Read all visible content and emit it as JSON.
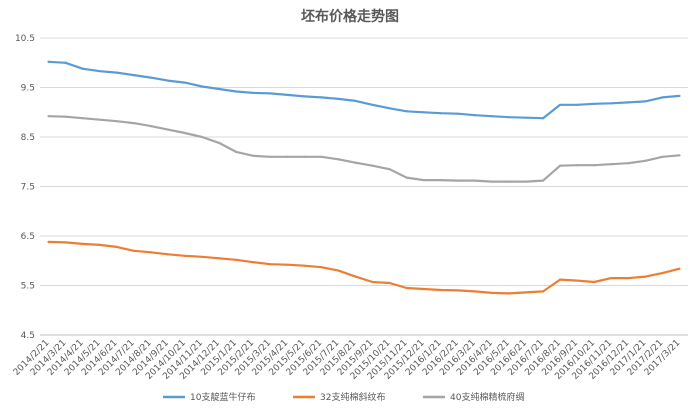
{
  "chart_data": {
    "type": "line",
    "title": "坯布价格走势图",
    "xlabel": "",
    "ylabel": "",
    "ylim": [
      4.5,
      10.5
    ],
    "y_ticks": [
      "4.5",
      "5.5",
      "6.5",
      "7.5",
      "8.5",
      "9.5",
      "10.5"
    ],
    "grid": true,
    "legend_position": "bottom",
    "x_ticks": [
      "2014/2/21",
      "2014/3/21",
      "2014/4/21",
      "2014/5/21",
      "2014/6/21",
      "2014/7/21",
      "2014/8/21",
      "2014/9/21",
      "2014/10/21",
      "2014/11/21",
      "2014/12/21",
      "2015/1/21",
      "2015/2/21",
      "2015/3/21",
      "2015/4/21",
      "2015/5/21",
      "2015/6/21",
      "2015/7/21",
      "2015/8/21",
      "2015/9/21",
      "2015/10/21",
      "2015/11/21",
      "2015/12/21",
      "2016/1/21",
      "2016/2/21",
      "2016/3/21",
      "2016/4/21",
      "2016/5/21",
      "2016/6/21",
      "2016/7/21",
      "2016/8/21",
      "2016/9/21",
      "2016/10/21",
      "2016/11/21",
      "2016/12/21",
      "2017/1/21",
      "2017/2/21",
      "2017/3/21"
    ],
    "series": [
      {
        "name": "10支靛蓝牛仔布",
        "color": "#5B9BD5",
        "values": [
          10.02,
          10.0,
          9.88,
          9.83,
          9.8,
          9.75,
          9.7,
          9.64,
          9.6,
          9.52,
          9.47,
          9.42,
          9.39,
          9.38,
          9.35,
          9.32,
          9.3,
          9.27,
          9.23,
          9.15,
          9.08,
          9.02,
          9.0,
          8.98,
          8.97,
          8.94,
          8.92,
          8.9,
          8.89,
          8.88,
          9.15,
          9.15,
          9.17,
          9.18,
          9.2,
          9.22,
          9.3,
          9.33
        ]
      },
      {
        "name": "32支纯棉斜纹布",
        "color": "#ED7D31",
        "values": [
          6.38,
          6.37,
          6.34,
          6.32,
          6.28,
          6.2,
          6.17,
          6.13,
          6.1,
          6.08,
          6.05,
          6.02,
          5.97,
          5.93,
          5.92,
          5.9,
          5.87,
          5.8,
          5.68,
          5.57,
          5.55,
          5.45,
          5.43,
          5.41,
          5.4,
          5.38,
          5.35,
          5.34,
          5.36,
          5.38,
          5.62,
          5.6,
          5.57,
          5.65,
          5.65,
          5.68,
          5.75,
          5.84
        ]
      },
      {
        "name": "40支纯棉精梳府绸",
        "color": "#A5A5A5",
        "values": [
          8.92,
          8.91,
          8.88,
          8.85,
          8.82,
          8.78,
          8.72,
          8.65,
          8.58,
          8.5,
          8.38,
          8.2,
          8.12,
          8.1,
          8.1,
          8.1,
          8.1,
          8.05,
          7.98,
          7.92,
          7.85,
          7.68,
          7.63,
          7.63,
          7.62,
          7.62,
          7.6,
          7.6,
          7.6,
          7.62,
          7.92,
          7.93,
          7.93,
          7.95,
          7.97,
          8.02,
          8.1,
          8.13
        ]
      }
    ]
  }
}
